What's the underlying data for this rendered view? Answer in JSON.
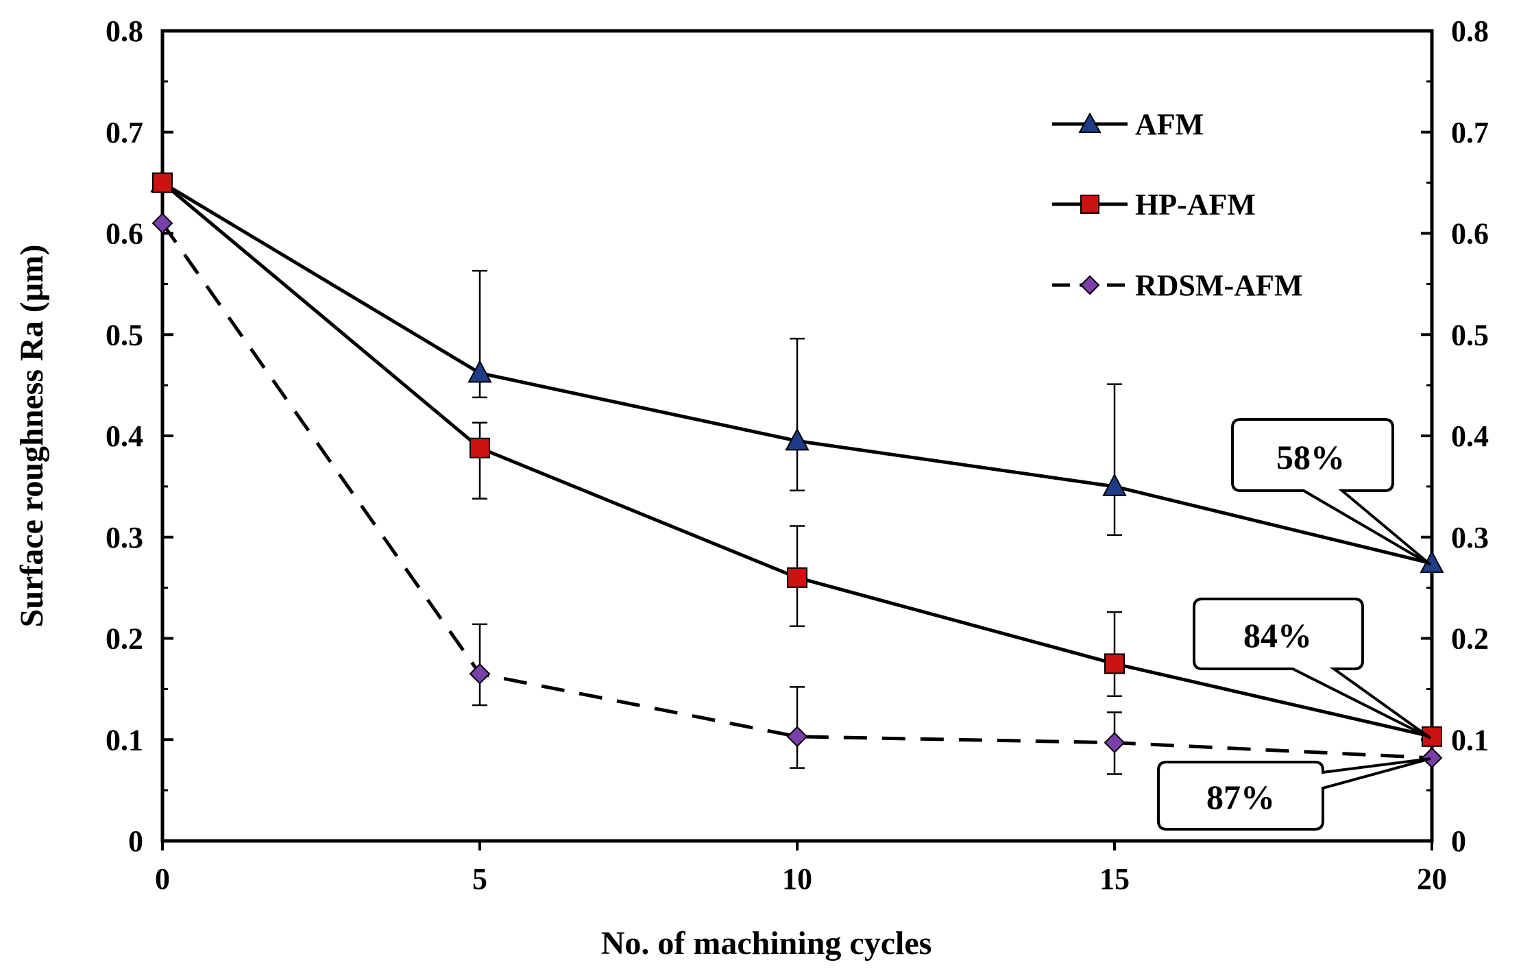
{
  "chart_data": {
    "type": "line",
    "title": "",
    "xlabel": "No. of machining cycles",
    "ylabel": "Surface roughness Ra (µm)",
    "x": [
      0,
      5,
      10,
      15,
      20
    ],
    "xlim": [
      0,
      20
    ],
    "ylim": [
      0,
      0.8
    ],
    "x_ticks": [
      "0",
      "5",
      "10",
      "15",
      "20"
    ],
    "y_ticks": [
      "0",
      "0.1",
      "0.2",
      "0.3",
      "0.4",
      "0.5",
      "0.6",
      "0.7",
      "0.8"
    ],
    "secondary_y_axis": true,
    "grid": false,
    "legend_position": "top-right",
    "series": [
      {
        "name": "AFM",
        "marker": "triangle",
        "line_style": "solid",
        "marker_color": "#1f3c88",
        "values": [
          0.65,
          0.462,
          0.395,
          0.35,
          0.274
        ],
        "error_low": [
          null,
          0.438,
          0.346,
          0.302,
          null
        ],
        "error_high": [
          null,
          0.563,
          0.496,
          0.451,
          null
        ]
      },
      {
        "name": "HP-AFM",
        "marker": "square",
        "line_style": "solid",
        "marker_color": "#cc1111",
        "values": [
          0.65,
          0.388,
          0.26,
          0.175,
          0.103
        ],
        "error_low": [
          null,
          0.338,
          0.212,
          0.143,
          null
        ],
        "error_high": [
          null,
          0.413,
          0.311,
          0.226,
          null
        ]
      },
      {
        "name": "RDSM-AFM",
        "marker": "diamond",
        "line_style": "dashed",
        "marker_color": "#7a3fa8",
        "values": [
          0.61,
          0.165,
          0.103,
          0.097,
          0.082
        ],
        "error_low": [
          null,
          0.134,
          0.072,
          0.066,
          null
        ],
        "error_high": [
          null,
          0.214,
          0.152,
          0.127,
          null
        ]
      }
    ],
    "annotations": [
      {
        "text": "58%",
        "series": "AFM",
        "x": 20
      },
      {
        "text": "84%",
        "series": "HP-AFM",
        "x": 20
      },
      {
        "text": "87%",
        "series": "RDSM-AFM",
        "x": 20
      }
    ]
  }
}
